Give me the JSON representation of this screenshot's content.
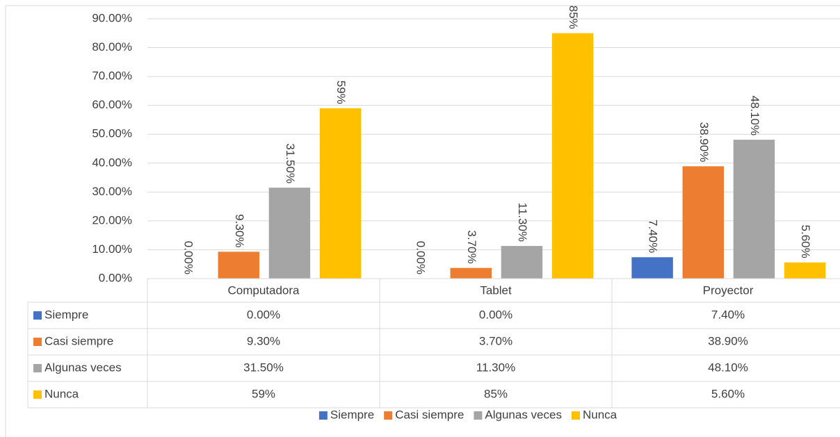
{
  "chart_data": {
    "type": "bar",
    "categories": [
      "Computadora",
      "Tablet",
      "Proyector"
    ],
    "series": [
      {
        "name": "Siempre",
        "color": "#4472c4",
        "values": [
          0,
          0,
          7.4
        ],
        "value_labels": [
          "0.00%",
          "0.00%",
          "7.40%"
        ]
      },
      {
        "name": "Casi siempre",
        "color": "#ed7d31",
        "values": [
          9.3,
          3.7,
          38.9
        ],
        "value_labels": [
          "9.30%",
          "3.70%",
          "38.90%"
        ]
      },
      {
        "name": "Algunas veces",
        "color": "#a5a5a5",
        "values": [
          31.5,
          11.3,
          48.1
        ],
        "value_labels": [
          "31.50%",
          "11.30%",
          "48.10%"
        ]
      },
      {
        "name": "Nunca",
        "color": "#ffc000",
        "values": [
          59,
          85,
          5.6
        ],
        "value_labels": [
          "59%",
          "85%",
          "5.60%"
        ]
      }
    ],
    "ylim": [
      0,
      90
    ],
    "yticks": [
      {
        "value": 0,
        "label": "0.00%"
      },
      {
        "value": 10,
        "label": "10.00%"
      },
      {
        "value": 20,
        "label": "20.00%"
      },
      {
        "value": 30,
        "label": "30.00%"
      },
      {
        "value": 40,
        "label": "40.00%"
      },
      {
        "value": 50,
        "label": "50.00%"
      },
      {
        "value": 60,
        "label": "60.00%"
      },
      {
        "value": 70,
        "label": "70.00%"
      },
      {
        "value": 80,
        "label": "80.00%"
      },
      {
        "value": 90,
        "label": "90.00%"
      }
    ],
    "grid": true,
    "data_table": true,
    "legend": "bottom"
  }
}
